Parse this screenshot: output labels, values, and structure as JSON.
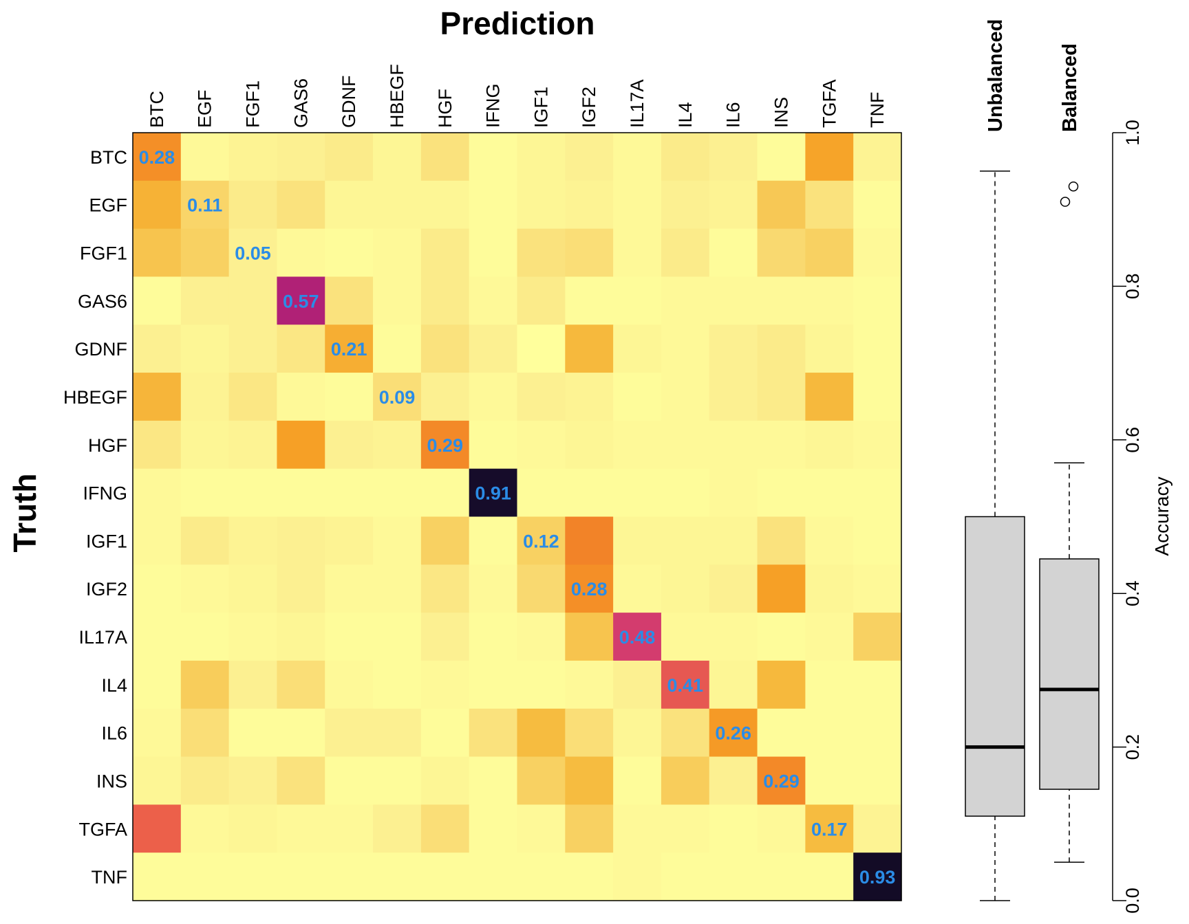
{
  "chart_data": [
    {
      "type": "heatmap",
      "title": "Prediction",
      "ylabel": "Truth",
      "x_labels": [
        "BTC",
        "EGF",
        "FGF1",
        "GAS6",
        "GDNF",
        "HBEGF",
        "HGF",
        "IFNG",
        "IGF1",
        "IGF2",
        "IL17A",
        "IL4",
        "IL6",
        "INS",
        "TGFA",
        "TNF"
      ],
      "y_labels": [
        "BTC",
        "EGF",
        "FGF1",
        "GAS6",
        "GDNF",
        "HBEGF",
        "HGF",
        "IFNG",
        "IGF1",
        "IGF2",
        "IL17A",
        "IL4",
        "IL6",
        "INS",
        "TGFA",
        "TNF"
      ],
      "value_range": [
        0,
        1
      ],
      "diagonal_labels": [
        "0.28",
        "0.11",
        "0.05",
        "0.57",
        "0.21",
        "0.09",
        "0.29",
        "0.91",
        "0.12",
        "0.28",
        "0.48",
        "0.41",
        "0.26",
        "0.29",
        "0.17",
        "0.93"
      ],
      "values": [
        [
          0.28,
          0.02,
          0.04,
          0.05,
          0.06,
          0.03,
          0.08,
          0.01,
          0.03,
          0.05,
          0.02,
          0.06,
          0.05,
          0.01,
          0.24,
          0.04
        ],
        [
          0.2,
          0.11,
          0.06,
          0.08,
          0.03,
          0.03,
          0.03,
          0.01,
          0.03,
          0.04,
          0.02,
          0.05,
          0.04,
          0.14,
          0.08,
          0.01
        ],
        [
          0.15,
          0.12,
          0.05,
          0.02,
          0.01,
          0.02,
          0.06,
          0.01,
          0.08,
          0.09,
          0.02,
          0.06,
          0.01,
          0.1,
          0.12,
          0.02
        ],
        [
          0.01,
          0.05,
          0.05,
          0.57,
          0.08,
          0.02,
          0.06,
          0.02,
          0.06,
          0.01,
          0.01,
          0.02,
          0.02,
          0.02,
          0.02,
          0.01
        ],
        [
          0.05,
          0.03,
          0.05,
          0.07,
          0.21,
          0.01,
          0.08,
          0.05,
          0.0,
          0.18,
          0.03,
          0.02,
          0.05,
          0.06,
          0.03,
          0.01
        ],
        [
          0.19,
          0.04,
          0.07,
          0.02,
          0.01,
          0.09,
          0.05,
          0.02,
          0.05,
          0.04,
          0.01,
          0.02,
          0.05,
          0.06,
          0.18,
          0.01
        ],
        [
          0.07,
          0.03,
          0.04,
          0.25,
          0.05,
          0.04,
          0.29,
          0.01,
          0.02,
          0.03,
          0.02,
          0.02,
          0.02,
          0.02,
          0.03,
          0.02
        ],
        [
          0.02,
          0.01,
          0.01,
          0.01,
          0.01,
          0.01,
          0.01,
          0.91,
          0.01,
          0.01,
          0.01,
          0.01,
          0.02,
          0.01,
          0.01,
          0.01
        ],
        [
          0.02,
          0.06,
          0.04,
          0.05,
          0.04,
          0.02,
          0.12,
          0.01,
          0.12,
          0.3,
          0.03,
          0.03,
          0.03,
          0.08,
          0.02,
          0.01
        ],
        [
          0.01,
          0.02,
          0.03,
          0.05,
          0.02,
          0.02,
          0.07,
          0.02,
          0.1,
          0.28,
          0.02,
          0.03,
          0.05,
          0.25,
          0.03,
          0.02
        ],
        [
          0.01,
          0.01,
          0.02,
          0.03,
          0.01,
          0.01,
          0.05,
          0.01,
          0.02,
          0.15,
          0.48,
          0.02,
          0.02,
          0.01,
          0.02,
          0.12
        ],
        [
          0.01,
          0.13,
          0.05,
          0.09,
          0.02,
          0.01,
          0.02,
          0.01,
          0.01,
          0.02,
          0.05,
          0.41,
          0.03,
          0.18,
          0.01,
          0.01
        ],
        [
          0.02,
          0.09,
          0.01,
          0.01,
          0.05,
          0.05,
          0.01,
          0.08,
          0.17,
          0.09,
          0.03,
          0.08,
          0.26,
          0.01,
          0.01,
          0.01
        ],
        [
          0.03,
          0.06,
          0.05,
          0.08,
          0.01,
          0.01,
          0.03,
          0.01,
          0.12,
          0.17,
          0.01,
          0.13,
          0.05,
          0.29,
          0.01,
          0.01
        ],
        [
          0.39,
          0.02,
          0.03,
          0.02,
          0.02,
          0.05,
          0.09,
          0.01,
          0.02,
          0.12,
          0.02,
          0.02,
          0.01,
          0.02,
          0.17,
          0.04
        ],
        [
          0.01,
          0.01,
          0.01,
          0.01,
          0.01,
          0.01,
          0.01,
          0.01,
          0.01,
          0.01,
          0.02,
          0.01,
          0.01,
          0.01,
          0.01,
          0.93
        ]
      ]
    },
    {
      "type": "boxplot",
      "ylabel": "Accuracy",
      "ylim": [
        0,
        1
      ],
      "yticks": [
        "0.0",
        "0.2",
        "0.4",
        "0.6",
        "0.8",
        "1.0"
      ],
      "series": [
        {
          "name": "Unbalanced",
          "min": 0.0,
          "q1": 0.11,
          "median": 0.2,
          "q3": 0.5,
          "max": 0.95,
          "outliers": []
        },
        {
          "name": "Balanced",
          "min": 0.05,
          "q1": 0.145,
          "median": 0.275,
          "q3": 0.445,
          "max": 0.57,
          "outliers": [
            0.91,
            0.93
          ]
        }
      ]
    }
  ]
}
